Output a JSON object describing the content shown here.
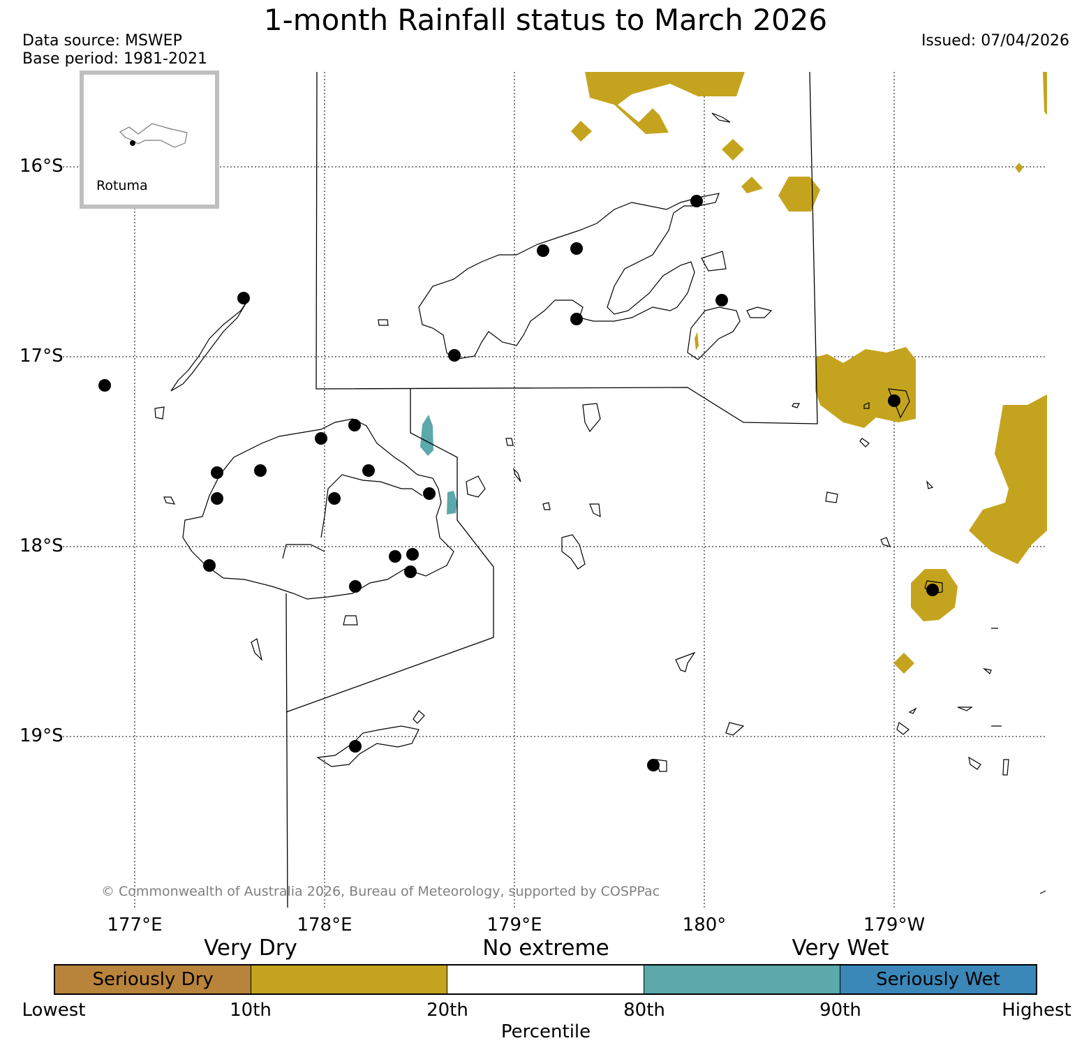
{
  "title": "1-month Rainfall status to March 2026",
  "data_source": "Data source: MSWEP",
  "base_period": "Base period: 1981-2021",
  "issued": "Issued: 07/04/2026",
  "inset_label": "Rotuma",
  "copyright": "© Commonwealth of Australia 2026, Bureau of Meteorology, supported by COSPPac",
  "lat_labels": [
    "16°S",
    "17°S",
    "18°S",
    "19°S"
  ],
  "lon_labels": [
    "177°E",
    "178°E",
    "179°E",
    "180°",
    "179°W"
  ],
  "legend": {
    "groups": [
      "Very Dry",
      "No extreme",
      "Very Wet"
    ],
    "categories": [
      {
        "label": "Seriously Dry",
        "color": "#b8833b"
      },
      {
        "label": "",
        "color": "#c4a41e"
      },
      {
        "label": "",
        "color": "#ffffff"
      },
      {
        "label": "",
        "color": "#5ca8ab"
      },
      {
        "label": "Seriously Wet",
        "color": "#3a87b8"
      }
    ],
    "ticks": [
      "Lowest",
      "10th",
      "20th",
      "80th",
      "90th",
      "Highest"
    ],
    "axis_title": "Percentile"
  },
  "colors": {
    "very_dry": "#c4a41e",
    "very_wet": "#5ca8ab",
    "station": "#000000",
    "grid": "#000000",
    "inset_border": "#bfbfbf"
  }
}
